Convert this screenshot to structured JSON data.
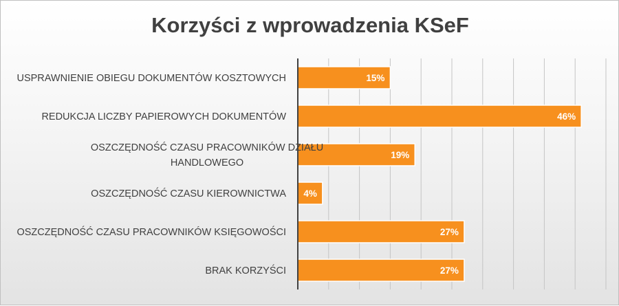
{
  "chart_data": {
    "type": "bar",
    "orientation": "horizontal",
    "title": "Korzyści z wprowadzenia KSeF",
    "categories": [
      [
        "USPRAWNIENIE OBIEGU DOKUMENTÓW KOSZTOWYCH"
      ],
      [
        "REDUKCJA LICZBY PAPIEROWYCH DOKUMENTÓW"
      ],
      [
        "OSZCZĘDNOŚĆ CZASU PRACOWNIKÓW DZIAŁU",
        "HANDLOWEGO"
      ],
      [
        "OSZCZĘDNOŚĆ CZASU KIEROWNICTWA"
      ],
      [
        "OSZCZĘDNOŚĆ CZASU PRACOWNIKÓW KSIĘGOWOŚCI"
      ],
      [
        "BRAK KORZYŚCI"
      ]
    ],
    "values": [
      15,
      46,
      19,
      4,
      27,
      27
    ],
    "data_labels": [
      "15%",
      "46%",
      "19%",
      "4%",
      "27%",
      "27%"
    ],
    "xlim": [
      0,
      50
    ],
    "grid": true,
    "bar_color": "#f7901e",
    "xlabel": "",
    "ylabel": ""
  }
}
